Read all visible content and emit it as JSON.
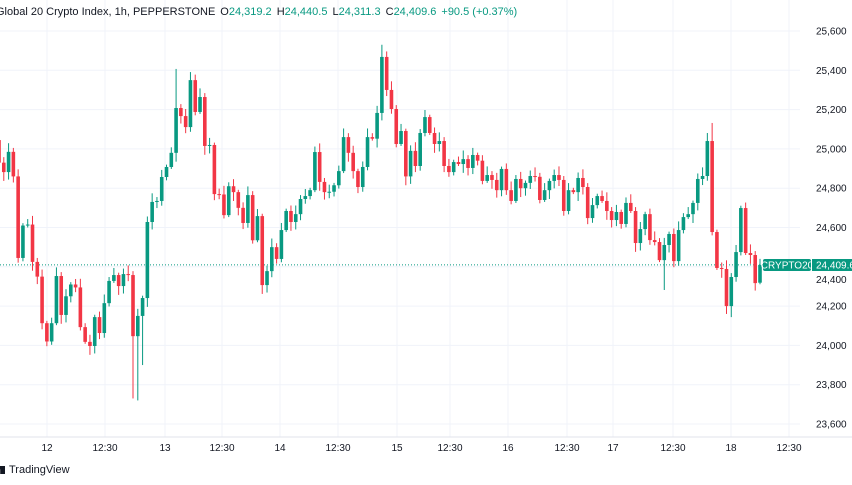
{
  "header": {
    "symbol": "Global 20 Crypto Index, 1h, PEPPERSTONE",
    "open_label": "O",
    "open": "24,319.2",
    "high_label": "H",
    "high": "24,440.5",
    "low_label": "L",
    "low": "24,311.3",
    "close_label": "C",
    "close": "24,409.6",
    "change": "+90.5 (+0.37%)"
  },
  "branding": "TradingView",
  "last_price": {
    "symbol": "CRYPTO20",
    "value": "24,409.6"
  },
  "colors": {
    "up": "#089981",
    "down": "#f23645",
    "grid": "#f0f3fa"
  },
  "chart_data": {
    "type": "candlestick",
    "title": "Global 20 Crypto Index, 1h, PEPPERSTONE",
    "ylim": [
      23500,
      25700
    ],
    "y_ticks": [
      "25,600",
      "25,400",
      "25,200",
      "25,000",
      "24,800",
      "24,600",
      "24,400",
      "24,200",
      "24,000",
      "23,800",
      "23,600"
    ],
    "y_tick_values": [
      25600,
      25400,
      25200,
      25000,
      24800,
      24600,
      24400,
      24200,
      24000,
      23800,
      23600
    ],
    "x_ticks": [
      "12",
      "12:30",
      "13",
      "12:30",
      "14",
      "12:30",
      "15",
      "12:30",
      "16",
      "12:30",
      "17",
      "12:30",
      "18",
      "12:30"
    ],
    "grid": true,
    "first_open": 25045,
    "close": [
      24930,
      24882,
      24985,
      24860,
      24445,
      24610,
      24615,
      24425,
      24350,
      24113,
      24020,
      24113,
      24353,
      24155,
      24250,
      24310,
      24295,
      24093,
      24018,
      23997,
      24144,
      24063,
      24215,
      24328,
      24358,
      24302,
      24363,
      24358,
      24047,
      24150,
      24241,
      24628,
      24730,
      24735,
      24857,
      24908,
      24980,
      25208,
      25167,
      25111,
      25350,
      25188,
      25264,
      25015,
      25020,
      24770,
      24768,
      24663,
      24810,
      24780,
      24700,
      24623,
      24765,
      24535,
      24658,
      24307,
      24378,
      24500,
      24440,
      24587,
      24684,
      24628,
      24668,
      24745,
      24760,
      24790,
      24984,
      24832,
      24780,
      24782,
      24815,
      24887,
      25060,
      24980,
      24887,
      24806,
      24908,
      25060,
      25052,
      25183,
      25468,
      25300,
      25203,
      25025,
      25091,
      24860,
      24990,
      24913,
      25081,
      25162,
      25081,
      25025,
      25040,
      24913,
      24882,
      24933,
      24923,
      24948,
      24903,
      24969,
      24940,
      24837,
      24867,
      24842,
      24790,
      24898,
      24790,
      24735,
      24847,
      24800,
      24827,
      24862,
      24858,
      24740,
      24790,
      24837,
      24867,
      24842,
      24684,
      24790,
      24780,
      24852,
      24806,
      24648,
      24714,
      24760,
      24735,
      24684,
      24638,
      24679,
      24618,
      24725,
      24684,
      24521,
      24592,
      24668,
      24536,
      24526,
      24434,
      24511,
      24567,
      24429,
      24587,
      24653,
      24668,
      24725,
      24847,
      24862,
      25040,
      24577,
      24394,
      24389,
      24200,
      24348,
      24475,
      24699,
      24470,
      24460,
      24317,
      24409.6
    ],
    "extremes": [
      {
        "i": 0,
        "high": 25080
      },
      {
        "i": 28,
        "low": 23730
      },
      {
        "i": 29,
        "low": 23720
      },
      {
        "i": 30,
        "low": 23900
      },
      {
        "i": 37,
        "high": 25407
      },
      {
        "i": 40,
        "high": 25391
      },
      {
        "i": 80,
        "high": 25530
      },
      {
        "i": 139,
        "low": 24282
      },
      {
        "i": 148,
        "high": 25081
      },
      {
        "i": 149,
        "high": 25132
      },
      {
        "i": 152,
        "low": 24160
      },
      {
        "i": 153,
        "low": 24144
      },
      {
        "i": 159,
        "open": 24319.2,
        "high": 24440.5,
        "low": 24311.3
      }
    ]
  }
}
